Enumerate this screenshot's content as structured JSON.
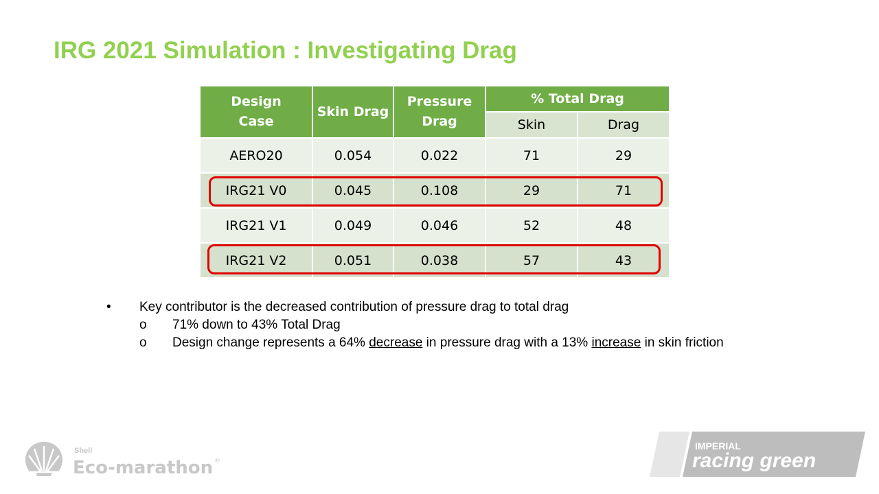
{
  "slide": {
    "title": "IRG 2021 Simulation : Investigating Drag"
  },
  "table": {
    "headers": {
      "design_case": [
        "Design",
        "Case"
      ],
      "skin_drag": "Skin Drag",
      "pressure_drag": [
        "Pressure",
        "Drag"
      ],
      "total_drag": "%  Total Drag",
      "sub_skin": "Skin",
      "sub_drag": "Drag"
    },
    "rows": [
      {
        "case": "AERO20",
        "skin": "0.054",
        "pressure": "0.022",
        "pct_skin": "71",
        "pct_drag": "29"
      },
      {
        "case": "IRG21 V0",
        "skin": "0.045",
        "pressure": "0.108",
        "pct_skin": "29",
        "pct_drag": "71"
      },
      {
        "case": "IRG21 V1",
        "skin": "0.049",
        "pressure": "0.046",
        "pct_skin": "52",
        "pct_drag": "48"
      },
      {
        "case": "IRG21 V2",
        "skin": "0.051",
        "pressure": "0.038",
        "pct_skin": "57",
        "pct_drag": "43"
      }
    ],
    "highlight_color": "#e00000"
  },
  "bullets": {
    "main_marker": "•",
    "main": "Key contributor is the decreased contribution of pressure drag to total drag",
    "sub_marker": "o",
    "sub1": "71% down to 43% Total Drag",
    "sub2": {
      "part1": "Design change represents a 64% ",
      "u1": "decrease",
      "part2": " in pressure drag with a 13% ",
      "u2": "increase",
      "part3": " in skin friction"
    }
  },
  "logos": {
    "shell_small": "Shell",
    "shell_main": "Eco-marathon",
    "shell_mark": "®",
    "irg_top": "IMPERIAL",
    "irg_bottom": "racing green"
  },
  "colors": {
    "title": "#92d050",
    "table_header": "#70ad47",
    "row_light": "#ebf1e7",
    "row_dark": "#d5e1cc",
    "logo_grey": "#c8c8c8"
  }
}
